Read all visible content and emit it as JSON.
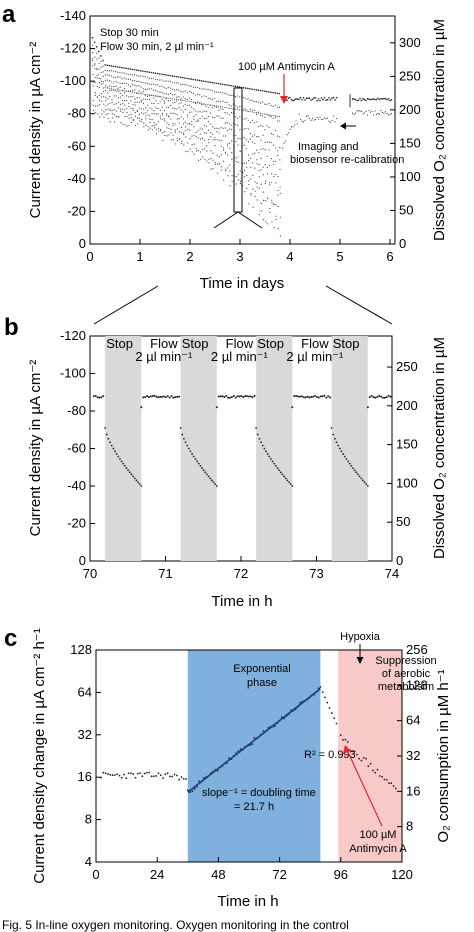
{
  "colors": {
    "red": "#e0282e",
    "blue": "#1f5fa8",
    "gray_band": "#d9d9d9",
    "blue_region": "#7fb0de",
    "pink_region": "#f7c9c9",
    "fit_line": "#1a3f7a"
  },
  "caption": "Fig. 5 In-line oxygen monitoring. Oxygen monitoring in the control",
  "chart_data": [
    {
      "panel": "a",
      "type": "scatter",
      "xlabel": "Time in days",
      "ylabel": "Current density in µA cm⁻²",
      "y2label": "Dissolved O₂ concentration in µM",
      "xlim": [
        0,
        6.1
      ],
      "ylim": [
        -140,
        0
      ],
      "y_reversed": true,
      "y2lim": [
        0,
        340
      ],
      "x_ticks": [
        "0",
        "1",
        "2",
        "3",
        "4",
        "5",
        "6"
      ],
      "y_ticks": [
        "-140",
        "-120",
        "-100",
        "-80",
        "-60",
        "-40",
        "-20",
        "0"
      ],
      "y2_ticks": [
        "0",
        "50",
        "100",
        "150",
        "200",
        "250",
        "300"
      ],
      "legend": [
        {
          "label": "Stop 30 min",
          "color": "red"
        },
        {
          "label": "Flow 30 min, 2 µl min⁻¹",
          "color": "blue"
        }
      ],
      "annotations": {
        "antimycin": "100 µM Antimycin A",
        "imaging": "Imaging and",
        "recal": "biosensor re-calibration"
      },
      "series_envelope": {
        "flow_upper": [
          [
            0.05,
            -130
          ],
          [
            0.3,
            -110
          ],
          [
            1,
            -104
          ],
          [
            2,
            -101
          ],
          [
            3,
            -96
          ],
          [
            3.8,
            -92
          ],
          [
            3.85,
            -88
          ],
          [
            4.5,
            -88
          ],
          [
            4.95,
            -88
          ]
        ],
        "stop_lower_min": [
          [
            0.1,
            -78
          ],
          [
            1,
            -70
          ],
          [
            2,
            -55
          ],
          [
            3,
            -30
          ],
          [
            3.8,
            -2
          ]
        ],
        "post_section": [
          [
            5.25,
            -88
          ],
          [
            6.05,
            -88
          ]
        ]
      }
    },
    {
      "panel": "b",
      "type": "scatter",
      "xlabel": "Time in h",
      "ylabel": "Current density in µA cm⁻²",
      "y2label": "Dissolved O₂ concentration in µM",
      "xlim": [
        70,
        74
      ],
      "ylim": [
        -120,
        0
      ],
      "y_reversed": true,
      "y2lim": [
        0,
        290
      ],
      "x_ticks": [
        "70",
        "71",
        "72",
        "73",
        "74"
      ],
      "y_ticks": [
        "-120",
        "-100",
        "-80",
        "-60",
        "-40",
        "-20",
        "0"
      ],
      "y2_ticks": [
        "0",
        "50",
        "100",
        "150",
        "200",
        "250"
      ],
      "bands": [
        [
          70.2,
          70.68
        ],
        [
          71.2,
          71.68
        ],
        [
          72.2,
          72.68
        ],
        [
          73.2,
          73.68
        ]
      ],
      "band_labels": [
        "Stop",
        "Flow",
        "2 µl min⁻¹",
        "Stop",
        "Flow",
        "2 µl min⁻¹",
        "Stop",
        "Flow",
        "2 µl min⁻¹",
        "Stop"
      ],
      "flow_level": -87,
      "stop_start": -71,
      "stop_end": -40
    },
    {
      "panel": "c",
      "type": "scatter",
      "xlabel": "Time in h",
      "ylabel": "Current density change in µA cm⁻² h⁻¹",
      "y2label": "O₂ consumption in µM h⁻¹",
      "xlim": [
        0,
        120
      ],
      "ylim": [
        4,
        128
      ],
      "y_log2": true,
      "y2lim": [
        4,
        256
      ],
      "x_ticks": [
        "0",
        "24",
        "48",
        "72",
        "96",
        "120"
      ],
      "y_ticks": [
        "4",
        "8",
        "16",
        "32",
        "64",
        "128"
      ],
      "y2_ticks": [
        "8",
        "16",
        "32",
        "64",
        "128",
        "256"
      ],
      "regions": {
        "exponential": [
          36,
          88
        ],
        "suppression": [
          95,
          120
        ]
      },
      "labels": {
        "exponential_title": "Exponential",
        "exponential_sub": "phase",
        "hypoxia": "Hypoxia",
        "suppression1": "Suppression",
        "suppression2": "of aerobic",
        "suppression3": "metabolsim",
        "r2": "R² = 0.993",
        "slope1": "slope⁻¹ = doubling time",
        "slope2": "= 21.7 h",
        "antimycin1": "100 µM",
        "antimycin2": "Antimycin A"
      },
      "fit_line": [
        [
          36,
          12.5
        ],
        [
          88,
          68
        ]
      ],
      "baseline_level": 16.5,
      "peak": [
        88,
        70
      ],
      "drop_point": [
        96,
        30
      ],
      "decay_end": [
        118,
        13
      ]
    }
  ]
}
